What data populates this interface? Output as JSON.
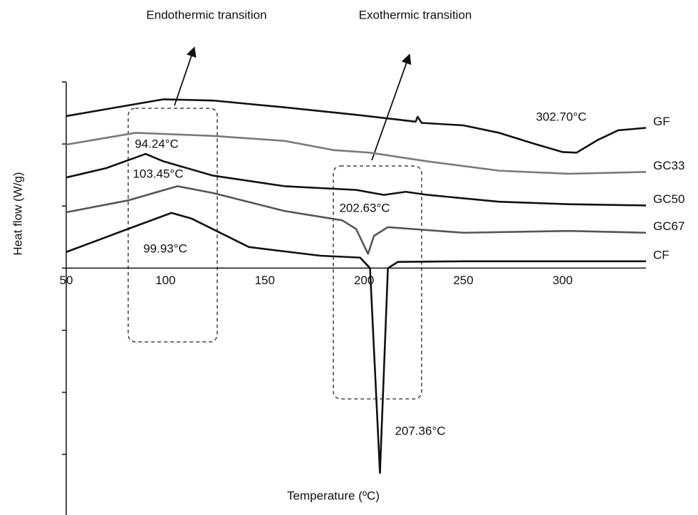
{
  "chart_data": {
    "type": "line",
    "xlabel": "Temperature (ºC)",
    "ylabel": "Heat flow (W/g)",
    "xlim": [
      50,
      342
    ],
    "xticks": [
      50,
      100,
      150,
      200,
      250,
      300
    ],
    "ylim": [
      -4,
      3
    ],
    "yticks": [
      3,
      2,
      1,
      0,
      -1,
      -2,
      -3
    ],
    "series": [
      {
        "name": "GF",
        "color": "#111111",
        "x": [
          50,
          99,
          124,
          160,
          196,
          226,
          227,
          229,
          250,
          268,
          285,
          300,
          307,
          318,
          328,
          342
        ],
        "values": [
          2.45,
          2.72,
          2.7,
          2.59,
          2.47,
          2.36,
          2.44,
          2.34,
          2.3,
          2.18,
          2.01,
          1.87,
          1.86,
          2.07,
          2.22,
          2.26
        ]
      },
      {
        "name": "GC33",
        "color": "#7a7a7a",
        "x": [
          50,
          85,
          124,
          160,
          185,
          203,
          232,
          268,
          303,
          342
        ],
        "values": [
          1.99,
          2.18,
          2.13,
          2.05,
          1.9,
          1.86,
          1.72,
          1.57,
          1.52,
          1.55
        ]
      },
      {
        "name": "GC50",
        "color": "#111111",
        "x": [
          50,
          70,
          90,
          99,
          124,
          160,
          196,
          210,
          221,
          232,
          268,
          303,
          342
        ],
        "values": [
          1.46,
          1.61,
          1.84,
          1.72,
          1.49,
          1.32,
          1.26,
          1.18,
          1.23,
          1.18,
          1.07,
          1.03,
          1.01
        ]
      },
      {
        "name": "GC67",
        "color": "#555555",
        "x": [
          50,
          81,
          106,
          124,
          160,
          189,
          196,
          202,
          205,
          212,
          250,
          303,
          342
        ],
        "values": [
          0.9,
          1.09,
          1.32,
          1.21,
          0.92,
          0.77,
          0.63,
          0.23,
          0.52,
          0.66,
          0.57,
          0.6,
          0.57
        ]
      },
      {
        "name": "CF",
        "color": "#111111",
        "x": [
          50,
          81,
          103,
          113,
          142,
          178,
          198,
          203,
          208,
          212,
          217,
          250,
          342
        ],
        "values": [
          0.26,
          0.63,
          0.89,
          0.8,
          0.34,
          0.2,
          0.17,
          0,
          -3.3,
          0,
          0.1,
          0.11,
          0.11
        ]
      }
    ],
    "annotations": [
      "Endothermic transition",
      "Exothermic transition",
      "302.70°C",
      "94.24°C",
      "103.45°C",
      "202.63°C",
      "99.93°C",
      "207.36°C"
    ]
  }
}
